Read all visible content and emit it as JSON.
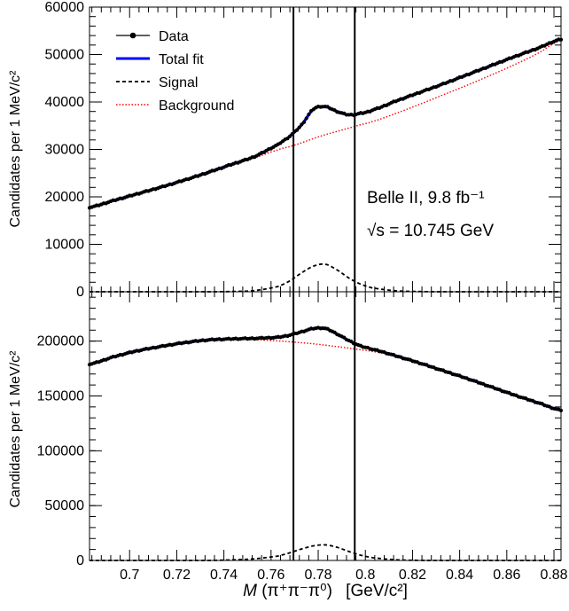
{
  "figure": {
    "xaxis_title": {
      "italic": "M",
      "formula": "(π⁺π⁻π⁰)",
      "unit": "[GeV/c²]"
    },
    "annotation": {
      "line1": "Belle II, 9.8 fb⁻¹",
      "line2": "√s = 10.745 GeV"
    },
    "mass_window": [
      0.7695,
      0.7955
    ]
  },
  "chart_data": [
    {
      "type": "line",
      "panel": "top",
      "ylabel": "Candidates per 1 MeV/c²",
      "xlim": [
        0.683,
        0.883
      ],
      "ylim": [
        0,
        60000
      ],
      "y_ticks": [
        "0",
        "10000",
        "20000",
        "30000",
        "40000",
        "50000",
        "60000"
      ],
      "x_ticks": [],
      "legend": {
        "placement": "top-left",
        "entries": [
          {
            "label": "Data",
            "style": "points",
            "color": "#000000"
          },
          {
            "label": "Total fit",
            "style": "solid",
            "color": "#0000ff"
          },
          {
            "label": "Signal",
            "style": "dashed",
            "color": "#000000"
          },
          {
            "label": "Background",
            "style": "dotted",
            "color": "#ff0000"
          }
        ]
      },
      "x": [
        0.683,
        0.693,
        0.703,
        0.713,
        0.723,
        0.733,
        0.743,
        0.753,
        0.763,
        0.768,
        0.773,
        0.778,
        0.783,
        0.788,
        0.793,
        0.798,
        0.803,
        0.813,
        0.823,
        0.833,
        0.843,
        0.853,
        0.863,
        0.873,
        0.883
      ],
      "series": [
        {
          "name": "Data",
          "color": "#000000",
          "values": [
            17800,
            19200,
            20600,
            22000,
            23500,
            25100,
            26800,
            28500,
            31000,
            32800,
            35200,
            38500,
            39000,
            38000,
            37300,
            37600,
            38300,
            40200,
            42000,
            43800,
            45700,
            47600,
            49500,
            51300,
            53200
          ]
        },
        {
          "name": "Total fit",
          "color": "#0000ff",
          "values": [
            17800,
            19200,
            20600,
            22000,
            23500,
            25100,
            26800,
            28500,
            31000,
            32800,
            35200,
            38500,
            39000,
            38000,
            37300,
            37600,
            38300,
            40200,
            42000,
            43800,
            45700,
            47600,
            49500,
            51300,
            53200
          ]
        },
        {
          "name": "Signal",
          "color": "#000000",
          "values": [
            0,
            0,
            0,
            0,
            0,
            0,
            50,
            250,
            1100,
            2300,
            4000,
            5400,
            5800,
            4600,
            2900,
            1600,
            800,
            200,
            50,
            0,
            0,
            0,
            0,
            0,
            0
          ]
        },
        {
          "name": "Background",
          "color": "#ff0000",
          "values": [
            17800,
            19200,
            20600,
            22000,
            23500,
            25100,
            26700,
            28200,
            29900,
            30600,
            31400,
            32300,
            33100,
            33800,
            34500,
            35200,
            35900,
            37600,
            39500,
            41500,
            43500,
            45600,
            47800,
            50200,
            53000
          ]
        }
      ]
    },
    {
      "type": "line",
      "panel": "bottom",
      "ylabel": "Candidates per 1 MeV/c²",
      "xlabel": "M(π⁺π⁻π⁰)  [GeV/c²]",
      "xlim": [
        0.683,
        0.883
      ],
      "ylim": [
        0,
        245000
      ],
      "y_ticks": [
        "0",
        "50000",
        "100000",
        "150000",
        "200000"
      ],
      "x_ticks": [
        "0.7",
        "0.72",
        "0.74",
        "0.76",
        "0.78",
        "0.8",
        "0.82",
        "0.84",
        "0.86",
        "0.88"
      ],
      "x": [
        0.683,
        0.693,
        0.703,
        0.713,
        0.723,
        0.733,
        0.743,
        0.753,
        0.763,
        0.768,
        0.773,
        0.778,
        0.783,
        0.788,
        0.793,
        0.798,
        0.803,
        0.813,
        0.823,
        0.833,
        0.843,
        0.853,
        0.863,
        0.873,
        0.883
      ],
      "series": [
        {
          "name": "Data",
          "color": "#000000",
          "values": [
            179000,
            185500,
            191000,
            195000,
            198500,
            201000,
            202000,
            202500,
            203500,
            205500,
            208500,
            211500,
            211500,
            206500,
            200500,
            195500,
            192500,
            186500,
            180000,
            173000,
            166000,
            158500,
            151000,
            144000,
            137000
          ]
        },
        {
          "name": "Total fit",
          "color": "#0000ff",
          "values": [
            179000,
            185500,
            191000,
            195000,
            198500,
            201000,
            202000,
            202500,
            203500,
            205500,
            208500,
            211500,
            211500,
            206500,
            200500,
            195500,
            192500,
            186500,
            180000,
            173000,
            166000,
            158500,
            151000,
            144000,
            137000
          ]
        },
        {
          "name": "Signal",
          "color": "#000000",
          "values": [
            0,
            0,
            0,
            0,
            0,
            0,
            500,
            1500,
            4000,
            7000,
            10500,
            13300,
            14200,
            12000,
            8200,
            4800,
            2500,
            600,
            100,
            0,
            0,
            0,
            0,
            0,
            0
          ]
        },
        {
          "name": "Background",
          "color": "#ff0000",
          "values": [
            179000,
            185500,
            191000,
            195000,
            198500,
            200800,
            201500,
            201300,
            200200,
            199400,
            198500,
            197500,
            196300,
            195000,
            193600,
            192100,
            190500,
            186700,
            180500,
            173500,
            166400,
            158900,
            151200,
            144100,
            137000
          ]
        }
      ]
    }
  ]
}
